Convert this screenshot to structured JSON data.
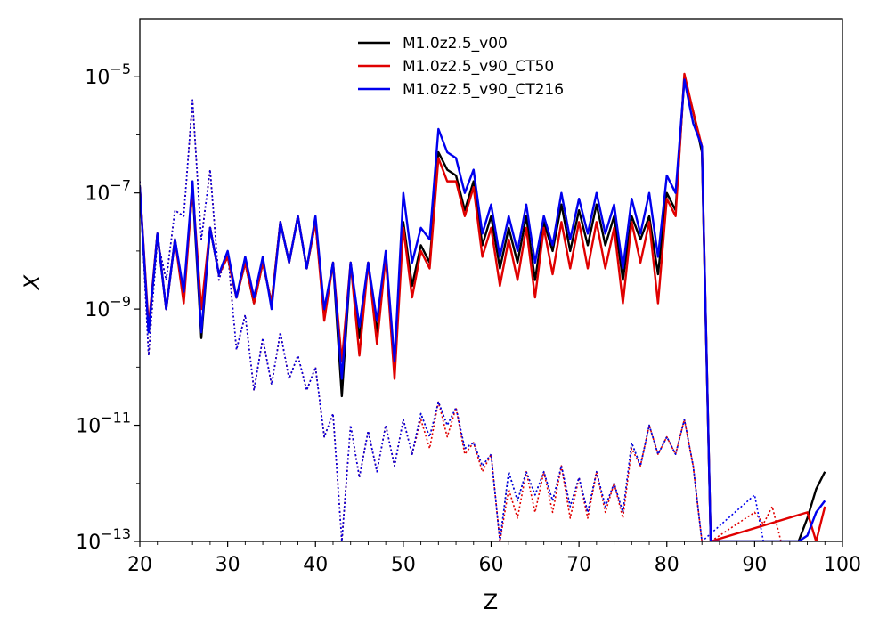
{
  "chart_data": {
    "type": "line",
    "xlabel": "Z",
    "ylabel": "X",
    "xlim": [
      20,
      100
    ],
    "ylim_log10": [
      -13,
      -4
    ],
    "yscale": "log",
    "grid": false,
    "legend_position": "top-center",
    "x_ticks": [
      20,
      30,
      40,
      50,
      60,
      70,
      80,
      90,
      100
    ],
    "x_tick_labels": [
      "20",
      "30",
      "40",
      "50",
      "60",
      "70",
      "80",
      "90",
      "100"
    ],
    "y_ticks_log10": [
      -13,
      -11,
      -9,
      -7,
      -5
    ],
    "y_tick_labels": [
      {
        "base": "10",
        "exp": "−13"
      },
      {
        "base": "10",
        "exp": "−11"
      },
      {
        "base": "10",
        "exp": "−9"
      },
      {
        "base": "10",
        "exp": "−7"
      },
      {
        "base": "10",
        "exp": "−5"
      }
    ],
    "note": "y values are log10(X); null = below axis range",
    "series": [
      {
        "name": "M1.0z2.5_v00",
        "color": "#000000",
        "linestyle": "solid",
        "x": [
          20,
          21,
          22,
          23,
          24,
          25,
          26,
          27,
          28,
          29,
          30,
          31,
          32,
          33,
          34,
          35,
          36,
          37,
          38,
          39,
          40,
          41,
          42,
          43,
          44,
          45,
          46,
          47,
          48,
          49,
          50,
          51,
          52,
          53,
          54,
          55,
          56,
          57,
          58,
          59,
          60,
          61,
          62,
          63,
          64,
          65,
          66,
          67,
          68,
          69,
          70,
          71,
          72,
          73,
          74,
          75,
          76,
          77,
          78,
          79,
          80,
          81,
          82,
          83,
          84,
          85,
          94,
          95,
          96,
          97,
          98
        ],
        "y": [
          -6.9,
          -9.4,
          -7.7,
          -9.0,
          -7.8,
          -8.8,
          -6.9,
          -9.5,
          -7.6,
          -8.4,
          -8.1,
          -8.8,
          -8.2,
          -8.9,
          -8.2,
          -8.9,
          -7.5,
          -8.2,
          -7.4,
          -8.3,
          -7.5,
          -9.1,
          -8.2,
          -10.5,
          -8.2,
          -9.5,
          -8.2,
          -9.4,
          -8.1,
          -10.0,
          -7.5,
          -8.6,
          -7.9,
          -8.2,
          -6.3,
          -6.6,
          -6.7,
          -7.3,
          -6.8,
          -7.9,
          -7.4,
          -8.3,
          -7.6,
          -8.2,
          -7.4,
          -8.5,
          -7.5,
          -8.0,
          -7.2,
          -8.0,
          -7.3,
          -7.9,
          -7.2,
          -7.9,
          -7.4,
          -8.5,
          -7.4,
          -7.8,
          -7.4,
          -8.4,
          -7.0,
          -7.3,
          -5.0,
          -5.6,
          -6.3,
          -13.0,
          -13.0,
          -13.0,
          -12.6,
          -12.1,
          -11.8
        ]
      },
      {
        "name": "M1.0z2.5_v90_CT50",
        "color": "#e00000",
        "linestyle": "solid",
        "x": [
          20,
          21,
          22,
          23,
          24,
          25,
          26,
          27,
          28,
          29,
          30,
          31,
          32,
          33,
          34,
          35,
          36,
          37,
          38,
          39,
          40,
          41,
          42,
          43,
          44,
          45,
          46,
          47,
          48,
          49,
          50,
          51,
          52,
          53,
          54,
          55,
          56,
          57,
          58,
          59,
          60,
          61,
          62,
          63,
          64,
          65,
          66,
          67,
          68,
          69,
          70,
          71,
          72,
          73,
          74,
          75,
          76,
          77,
          78,
          79,
          80,
          81,
          82,
          83,
          84,
          85,
          96,
          97,
          98
        ],
        "y": [
          -6.9,
          -9.3,
          -7.7,
          -9.0,
          -7.8,
          -8.9,
          -6.9,
          -9.0,
          -7.6,
          -8.4,
          -8.1,
          -8.8,
          -8.2,
          -8.9,
          -8.2,
          -8.9,
          -7.5,
          -8.2,
          -7.4,
          -8.3,
          -7.5,
          -9.2,
          -8.2,
          -9.9,
          -8.2,
          -9.8,
          -8.2,
          -9.6,
          -8.1,
          -10.2,
          -7.6,
          -8.8,
          -8.0,
          -8.3,
          -6.4,
          -6.8,
          -6.8,
          -7.4,
          -6.9,
          -8.1,
          -7.6,
          -8.6,
          -7.8,
          -8.5,
          -7.6,
          -8.8,
          -7.6,
          -8.4,
          -7.5,
          -8.3,
          -7.5,
          -8.3,
          -7.5,
          -8.3,
          -7.6,
          -8.9,
          -7.5,
          -8.2,
          -7.5,
          -8.9,
          -7.1,
          -7.4,
          -4.95,
          -5.6,
          -6.2,
          -13.0,
          -12.5,
          -13.0,
          -12.4
        ]
      },
      {
        "name": "M1.0z2.5_v90_CT216",
        "color": "#0000ee",
        "linestyle": "solid",
        "x": [
          20,
          21,
          22,
          23,
          24,
          25,
          26,
          27,
          28,
          29,
          30,
          31,
          32,
          33,
          34,
          35,
          36,
          37,
          38,
          39,
          40,
          41,
          42,
          43,
          44,
          45,
          46,
          47,
          48,
          49,
          50,
          51,
          52,
          53,
          54,
          55,
          56,
          57,
          58,
          59,
          60,
          61,
          62,
          63,
          64,
          65,
          66,
          67,
          68,
          69,
          70,
          71,
          72,
          73,
          74,
          75,
          76,
          77,
          78,
          79,
          80,
          81,
          82,
          83,
          84,
          85,
          94,
          95,
          96,
          97,
          98
        ],
        "y": [
          -6.9,
          -9.4,
          -7.7,
          -9.0,
          -7.8,
          -8.7,
          -6.8,
          -9.4,
          -7.6,
          -8.4,
          -8.0,
          -8.8,
          -8.1,
          -8.8,
          -8.1,
          -9.0,
          -7.5,
          -8.2,
          -7.4,
          -8.3,
          -7.4,
          -9.0,
          -8.2,
          -10.2,
          -8.2,
          -9.3,
          -8.2,
          -9.2,
          -8.0,
          -9.9,
          -7.0,
          -8.2,
          -7.6,
          -7.8,
          -5.9,
          -6.3,
          -6.4,
          -7.0,
          -6.6,
          -7.7,
          -7.2,
          -8.1,
          -7.4,
          -8.0,
          -7.2,
          -8.2,
          -7.4,
          -7.9,
          -7.0,
          -7.8,
          -7.1,
          -7.7,
          -7.0,
          -7.7,
          -7.2,
          -8.3,
          -7.1,
          -7.7,
          -7.0,
          -8.1,
          -6.7,
          -7.0,
          -5.05,
          -5.8,
          -6.2,
          -13.0,
          -13.0,
          -13.0,
          -12.9,
          -12.5,
          -12.3
        ]
      },
      {
        "name": "M1.0z2.5_v00 (dotted)",
        "color": "#000000",
        "linestyle": "dotted",
        "x": [
          20,
          21,
          22,
          23,
          24,
          25,
          26,
          27,
          28,
          29,
          30,
          31,
          32,
          33,
          34,
          35,
          36,
          37,
          38,
          39,
          40,
          41,
          42,
          43,
          44,
          45,
          46,
          47,
          48,
          49,
          50,
          51,
          52,
          53,
          54,
          55,
          56,
          57,
          58,
          59,
          60,
          61,
          62,
          63,
          64,
          65,
          66,
          67,
          68,
          69,
          70,
          71,
          72,
          73,
          74,
          75,
          76,
          77,
          78,
          79,
          80,
          81,
          82,
          83,
          84
        ],
        "y": [
          -6.8,
          -9.8,
          -7.8,
          -8.5,
          -7.3,
          -7.4,
          -5.4,
          -7.8,
          -6.6,
          -8.5,
          -8.0,
          -9.7,
          -9.1,
          -10.4,
          -9.5,
          -10.3,
          -9.4,
          -10.2,
          -9.8,
          -10.4,
          -10.0,
          -11.2,
          -10.8,
          -13.0,
          -11.0,
          -11.9,
          -11.1,
          -11.8,
          -11.0,
          -11.7,
          -10.9,
          -11.5,
          -10.8,
          -11.2,
          -10.6,
          -11.0,
          -10.7,
          -11.4,
          -11.3,
          -11.7,
          -11.5,
          -13.0,
          -11.8,
          -12.3,
          -11.8,
          -12.2,
          -11.8,
          -12.3,
          -11.7,
          -12.4,
          -11.9,
          -12.5,
          -11.8,
          -12.4,
          -12.0,
          -12.5,
          -11.3,
          -11.7,
          -11.0,
          -11.5,
          -11.2,
          -11.5,
          -10.9,
          -11.7,
          -13.0
        ]
      },
      {
        "name": "M1.0z2.5_v90_CT50 (dotted)",
        "color": "#e00000",
        "linestyle": "dotted",
        "x": [
          20,
          21,
          22,
          23,
          24,
          25,
          26,
          27,
          28,
          29,
          30,
          31,
          32,
          33,
          34,
          35,
          36,
          37,
          38,
          39,
          40,
          41,
          42,
          43,
          44,
          45,
          46,
          47,
          48,
          49,
          50,
          51,
          52,
          53,
          54,
          55,
          56,
          57,
          58,
          59,
          60,
          61,
          62,
          63,
          64,
          65,
          66,
          67,
          68,
          69,
          70,
          71,
          72,
          73,
          74,
          75,
          76,
          77,
          78,
          79,
          80,
          81,
          82,
          83,
          84,
          85,
          90,
          91,
          92,
          93
        ],
        "y": [
          -6.8,
          -9.8,
          -7.8,
          -8.5,
          -7.3,
          -7.4,
          -5.4,
          -7.8,
          -6.6,
          -8.5,
          -8.0,
          -9.7,
          -9.1,
          -10.4,
          -9.5,
          -10.3,
          -9.4,
          -10.2,
          -9.8,
          -10.4,
          -10.0,
          -11.2,
          -10.8,
          -13.0,
          -11.0,
          -11.9,
          -11.1,
          -11.8,
          -11.0,
          -11.7,
          -10.9,
          -11.5,
          -10.9,
          -11.4,
          -10.6,
          -11.2,
          -10.7,
          -11.5,
          -11.3,
          -11.8,
          -11.5,
          -13.0,
          -12.1,
          -12.6,
          -11.8,
          -12.5,
          -11.8,
          -12.5,
          -11.7,
          -12.6,
          -11.9,
          -12.6,
          -11.8,
          -12.5,
          -12.0,
          -12.6,
          -11.4,
          -11.7,
          -11.0,
          -11.5,
          -11.2,
          -11.5,
          -10.9,
          -11.7,
          -13.0,
          -13.0,
          -12.5,
          -12.7,
          -12.4,
          -13.0
        ]
      },
      {
        "name": "M1.0z2.5_v90_CT216 (dotted)",
        "color": "#0000ee",
        "linestyle": "dotted",
        "x": [
          20,
          21,
          22,
          23,
          24,
          25,
          26,
          27,
          28,
          29,
          30,
          31,
          32,
          33,
          34,
          35,
          36,
          37,
          38,
          39,
          40,
          41,
          42,
          43,
          44,
          45,
          46,
          47,
          48,
          49,
          50,
          51,
          52,
          53,
          54,
          55,
          56,
          57,
          58,
          59,
          60,
          61,
          62,
          63,
          64,
          65,
          66,
          67,
          68,
          69,
          70,
          71,
          72,
          73,
          74,
          75,
          76,
          77,
          78,
          79,
          80,
          81,
          82,
          83,
          84,
          90,
          91
        ],
        "y": [
          -6.8,
          -9.8,
          -7.8,
          -8.5,
          -7.3,
          -7.4,
          -5.4,
          -7.8,
          -6.6,
          -8.5,
          -8.0,
          -9.7,
          -9.1,
          -10.4,
          -9.5,
          -10.3,
          -9.4,
          -10.2,
          -9.8,
          -10.4,
          -10.0,
          -11.2,
          -10.8,
          -13.0,
          -11.0,
          -11.9,
          -11.1,
          -11.8,
          -11.0,
          -11.7,
          -10.9,
          -11.5,
          -10.8,
          -11.2,
          -10.6,
          -11.0,
          -10.7,
          -11.4,
          -11.3,
          -11.7,
          -11.5,
          -13.0,
          -11.8,
          -12.3,
          -11.8,
          -12.2,
          -11.8,
          -12.3,
          -11.7,
          -12.4,
          -11.9,
          -12.5,
          -11.8,
          -12.4,
          -12.0,
          -12.5,
          -11.3,
          -11.7,
          -11.0,
          -11.5,
          -11.2,
          -11.5,
          -10.9,
          -11.7,
          -13.0,
          -12.2,
          -13.0
        ]
      }
    ],
    "legend": [
      {
        "label": "M1.0z2.5_v00",
        "color": "#000000"
      },
      {
        "label": "M1.0z2.5_v90_CT50",
        "color": "#e00000"
      },
      {
        "label": "M1.0z2.5_v90_CT216",
        "color": "#0000ee"
      }
    ]
  }
}
